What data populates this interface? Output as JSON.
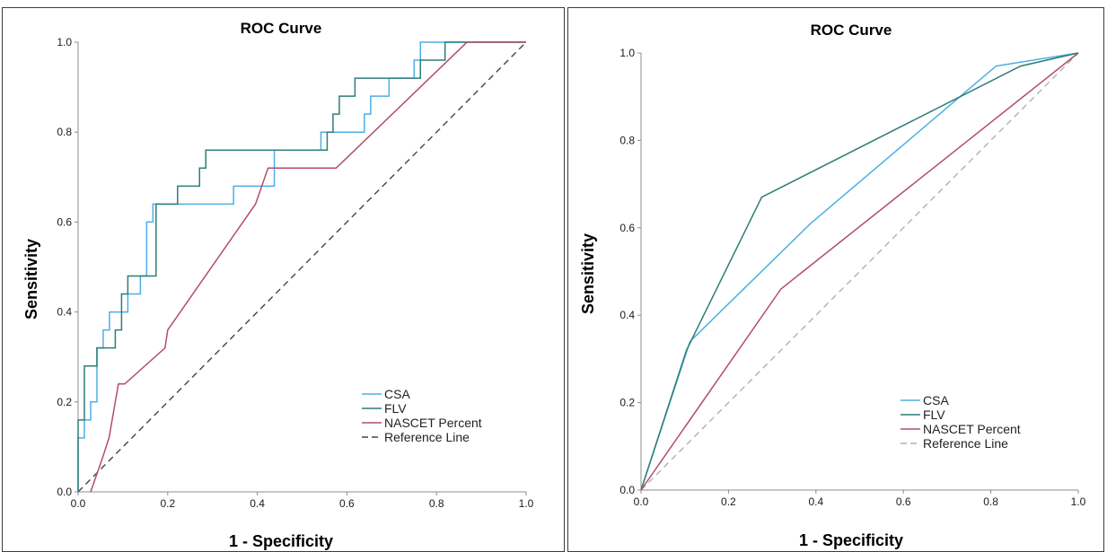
{
  "chart_data": [
    {
      "type": "line",
      "title": "ROC Curve",
      "xlabel": "1 - Specificity",
      "ylabel": "Sensitivity",
      "xlim": [
        0,
        1
      ],
      "ylim": [
        0,
        1
      ],
      "xticks": [
        "0.0",
        "0.2",
        "0.4",
        "0.6",
        "0.8",
        "1.0"
      ],
      "yticks": [
        "0.0",
        "0.2",
        "0.4",
        "0.6",
        "0.8",
        "1.0"
      ],
      "grid": false,
      "legend_position": "bottom-right",
      "series": [
        {
          "name": "CSA",
          "color": "#4dafe6",
          "style": "solid",
          "points": [
            [
              0,
              0
            ],
            [
              0,
              0.12
            ],
            [
              0.014,
              0.12
            ],
            [
              0.014,
              0.16
            ],
            [
              0.028,
              0.16
            ],
            [
              0.028,
              0.2
            ],
            [
              0.042,
              0.2
            ],
            [
              0.042,
              0.28
            ],
            [
              0.042,
              0.32
            ],
            [
              0.056,
              0.32
            ],
            [
              0.056,
              0.36
            ],
            [
              0.07,
              0.36
            ],
            [
              0.07,
              0.4
            ],
            [
              0.111,
              0.4
            ],
            [
              0.111,
              0.44
            ],
            [
              0.139,
              0.44
            ],
            [
              0.139,
              0.48
            ],
            [
              0.153,
              0.48
            ],
            [
              0.153,
              0.6
            ],
            [
              0.167,
              0.6
            ],
            [
              0.167,
              0.64
            ],
            [
              0.347,
              0.64
            ],
            [
              0.347,
              0.68
            ],
            [
              0.438,
              0.68
            ],
            [
              0.438,
              0.76
            ],
            [
              0.542,
              0.76
            ],
            [
              0.542,
              0.8
            ],
            [
              0.639,
              0.8
            ],
            [
              0.639,
              0.84
            ],
            [
              0.653,
              0.84
            ],
            [
              0.653,
              0.88
            ],
            [
              0.694,
              0.88
            ],
            [
              0.694,
              0.92
            ],
            [
              0.75,
              0.92
            ],
            [
              0.75,
              0.96
            ],
            [
              0.764,
              0.96
            ],
            [
              0.764,
              1.0
            ],
            [
              1.0,
              1.0
            ]
          ]
        },
        {
          "name": "FLV",
          "color": "#2e7d77",
          "style": "solid",
          "points": [
            [
              0,
              0
            ],
            [
              0,
              0.16
            ],
            [
              0.014,
              0.16
            ],
            [
              0.014,
              0.28
            ],
            [
              0.042,
              0.28
            ],
            [
              0.042,
              0.32
            ],
            [
              0.083,
              0.32
            ],
            [
              0.083,
              0.36
            ],
            [
              0.097,
              0.36
            ],
            [
              0.097,
              0.44
            ],
            [
              0.111,
              0.44
            ],
            [
              0.111,
              0.48
            ],
            [
              0.174,
              0.48
            ],
            [
              0.174,
              0.64
            ],
            [
              0.222,
              0.64
            ],
            [
              0.222,
              0.68
            ],
            [
              0.271,
              0.68
            ],
            [
              0.271,
              0.72
            ],
            [
              0.285,
              0.72
            ],
            [
              0.285,
              0.76
            ],
            [
              0.556,
              0.76
            ],
            [
              0.556,
              0.8
            ],
            [
              0.569,
              0.8
            ],
            [
              0.569,
              0.84
            ],
            [
              0.583,
              0.84
            ],
            [
              0.583,
              0.88
            ],
            [
              0.618,
              0.88
            ],
            [
              0.618,
              0.92
            ],
            [
              0.764,
              0.92
            ],
            [
              0.764,
              0.96
            ],
            [
              0.819,
              0.96
            ],
            [
              0.819,
              1.0
            ],
            [
              1.0,
              1.0
            ]
          ]
        },
        {
          "name": "NASCET Percent",
          "color": "#b24d6c",
          "style": "solid",
          "points": [
            [
              0.028,
              0
            ],
            [
              0.042,
              0.04
            ],
            [
              0.056,
              0.08
            ],
            [
              0.069,
              0.12
            ],
            [
              0.076,
              0.16
            ],
            [
              0.083,
              0.2
            ],
            [
              0.09,
              0.24
            ],
            [
              0.104,
              0.24
            ],
            [
              0.194,
              0.32
            ],
            [
              0.2,
              0.36
            ],
            [
              0.396,
              0.64
            ],
            [
              0.424,
              0.72
            ],
            [
              0.576,
              0.72
            ],
            [
              0.868,
              1.0
            ],
            [
              1.0,
              1.0
            ]
          ]
        },
        {
          "name": "Reference Line",
          "color": "#444444",
          "style": "dashed",
          "points": [
            [
              0,
              0
            ],
            [
              1,
              1
            ]
          ]
        }
      ]
    },
    {
      "type": "line",
      "title": "ROC Curve",
      "xlabel": "1 - Specificity",
      "ylabel": "Sensitivity",
      "xlim": [
        0,
        1
      ],
      "ylim": [
        0,
        1
      ],
      "xticks": [
        "0.0",
        "0.2",
        "0.4",
        "0.6",
        "0.8",
        "1.0"
      ],
      "yticks": [
        "0.0",
        "0.2",
        "0.4",
        "0.6",
        "0.8",
        "1.0"
      ],
      "grid": false,
      "legend_position": "bottom-right",
      "series": [
        {
          "name": "CSA",
          "color": "#4dafe6",
          "style": "solid",
          "points": [
            [
              0,
              0
            ],
            [
              0.112,
              0.34
            ],
            [
              0.388,
              0.61
            ],
            [
              0.812,
              0.97
            ],
            [
              1.0,
              1.0
            ]
          ]
        },
        {
          "name": "FLV",
          "color": "#2e7d77",
          "style": "solid",
          "points": [
            [
              0,
              0
            ],
            [
              0.104,
              0.32
            ],
            [
              0.276,
              0.67
            ],
            [
              0.868,
              0.97
            ],
            [
              1.0,
              1.0
            ]
          ]
        },
        {
          "name": "NASCET Percent",
          "color": "#b24d6c",
          "style": "solid",
          "points": [
            [
              0,
              0
            ],
            [
              0.32,
              0.46
            ],
            [
              1.0,
              1.0
            ]
          ]
        },
        {
          "name": "Reference Line",
          "color": "#b0b0b0",
          "style": "dashed",
          "points": [
            [
              0,
              0
            ],
            [
              1,
              1
            ]
          ]
        }
      ]
    }
  ]
}
